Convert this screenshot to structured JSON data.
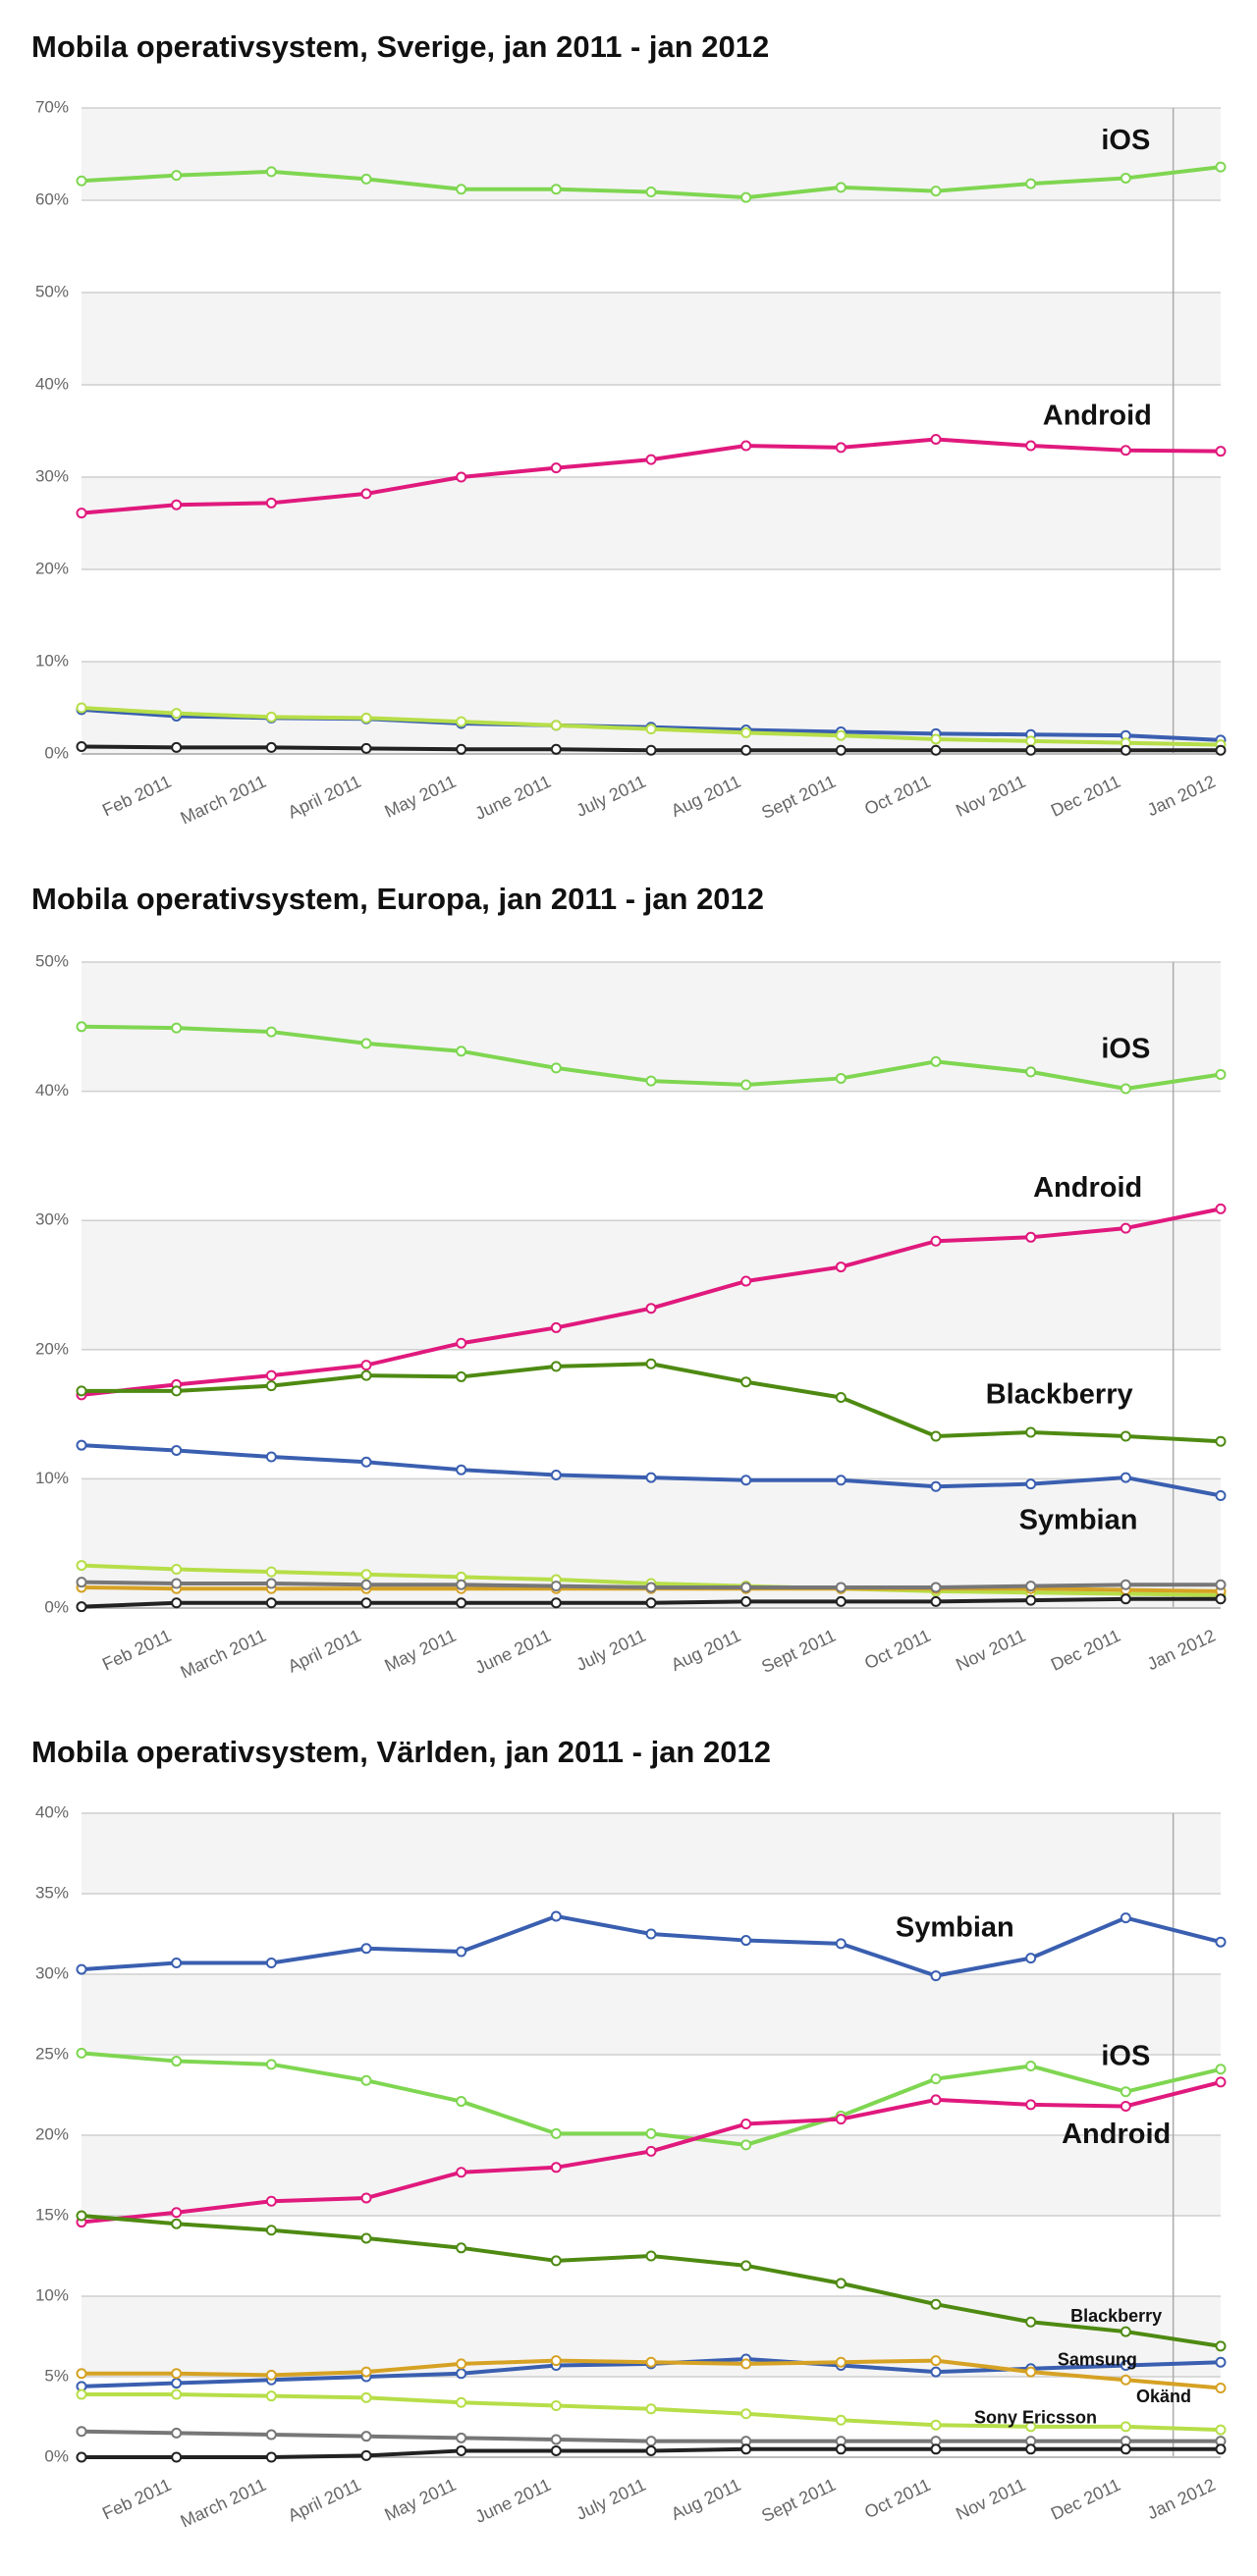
{
  "chart_data": [
    {
      "type": "line",
      "title": "Mobila operativsystem, Sverige, jan 2011 - jan 2012",
      "categories": [
        null,
        "Feb 2011",
        "March 2011",
        "April 2011",
        "May 2011",
        "June 2011",
        "July 2011",
        "Aug 2011",
        "Sept 2011",
        "Oct 2011",
        "Nov 2011",
        "Dec 2011",
        "Jan 2012"
      ],
      "ylim": [
        0,
        70
      ],
      "yticks": [
        {
          "value": 0,
          "label": "0%"
        },
        {
          "value": 10,
          "label": "10%"
        },
        {
          "value": 20,
          "label": "20%"
        },
        {
          "value": 30,
          "label": "30%"
        },
        {
          "value": 40,
          "label": "40%"
        },
        {
          "value": 50,
          "label": "50%"
        },
        {
          "value": 60,
          "label": "60%"
        },
        {
          "value": 70,
          "label": "70%"
        }
      ],
      "grid": true,
      "series": [
        {
          "name": "iOS",
          "color": "#7fd651",
          "values": [
            62.1,
            62.7,
            63.1,
            62.3,
            61.2,
            61.2,
            60.9,
            60.3,
            61.4,
            61.0,
            61.8,
            62.4,
            63.6
          ]
        },
        {
          "name": "Android",
          "color": "#e0197d",
          "values": [
            26.1,
            27.0,
            27.2,
            28.2,
            30.0,
            31.0,
            31.9,
            33.4,
            33.2,
            34.1,
            33.4,
            32.9,
            32.8
          ]
        },
        {
          "color": "#3a5fb0",
          "values": [
            4.8,
            4.1,
            3.9,
            3.8,
            3.3,
            3.1,
            2.9,
            2.6,
            2.4,
            2.2,
            2.1,
            2.0,
            1.5
          ]
        },
        {
          "color": "#b6de48",
          "values": [
            5.0,
            4.4,
            4.0,
            3.9,
            3.5,
            3.1,
            2.7,
            2.3,
            2.0,
            1.6,
            1.4,
            1.2,
            1.0
          ]
        },
        {
          "color": "#222222",
          "values": [
            0.8,
            0.7,
            0.7,
            0.6,
            0.5,
            0.5,
            0.4,
            0.4,
            0.4,
            0.4,
            0.4,
            0.4,
            0.4
          ]
        }
      ]
    },
    {
      "type": "line",
      "title": "Mobila operativsystem, Europa, jan 2011 - jan 2012",
      "categories": [
        null,
        "Feb 2011",
        "March 2011",
        "April 2011",
        "May 2011",
        "June 2011",
        "July 2011",
        "Aug 2011",
        "Sept 2011",
        "Oct 2011",
        "Nov 2011",
        "Dec 2011",
        "Jan 2012"
      ],
      "ylim": [
        0,
        50
      ],
      "yticks": [
        {
          "value": 0,
          "label": "0%"
        },
        {
          "value": 10,
          "label": "10%"
        },
        {
          "value": 20,
          "label": "20%"
        },
        {
          "value": 30,
          "label": "30%"
        },
        {
          "value": 40,
          "label": "40%"
        },
        {
          "value": 50,
          "label": "50%"
        }
      ],
      "grid": true,
      "series": [
        {
          "name": "iOS",
          "color": "#7fd651",
          "values": [
            45.0,
            44.9,
            44.6,
            43.7,
            43.1,
            41.8,
            40.8,
            40.5,
            41.0,
            42.3,
            41.5,
            40.2,
            41.3
          ]
        },
        {
          "name": "Android",
          "color": "#e0197d",
          "values": [
            16.5,
            17.3,
            18.0,
            18.8,
            20.5,
            21.7,
            23.2,
            25.3,
            26.4,
            28.4,
            28.7,
            29.4,
            30.9
          ]
        },
        {
          "name": "Blackberry",
          "color": "#4e8a12",
          "values": [
            16.8,
            16.8,
            17.2,
            18.0,
            17.9,
            18.7,
            18.9,
            17.5,
            16.3,
            13.3,
            13.6,
            13.3,
            12.9
          ]
        },
        {
          "name": "Symbian",
          "color": "#3a5fb0",
          "values": [
            12.6,
            12.2,
            11.7,
            11.3,
            10.7,
            10.3,
            10.1,
            9.9,
            9.9,
            9.4,
            9.6,
            10.1,
            8.7
          ]
        },
        {
          "color": "#b6de48",
          "values": [
            3.3,
            3.0,
            2.8,
            2.6,
            2.4,
            2.2,
            1.9,
            1.7,
            1.5,
            1.3,
            1.2,
            1.1,
            1.0
          ]
        },
        {
          "color": "#d6a224",
          "values": [
            1.6,
            1.5,
            1.5,
            1.5,
            1.5,
            1.5,
            1.5,
            1.5,
            1.5,
            1.5,
            1.5,
            1.4,
            1.3
          ]
        },
        {
          "color": "#777777",
          "values": [
            2.0,
            1.9,
            1.9,
            1.8,
            1.8,
            1.7,
            1.6,
            1.6,
            1.6,
            1.6,
            1.7,
            1.8,
            1.8
          ]
        },
        {
          "color": "#222222",
          "values": [
            0.1,
            0.4,
            0.4,
            0.4,
            0.4,
            0.4,
            0.4,
            0.5,
            0.5,
            0.5,
            0.6,
            0.7,
            0.7
          ]
        }
      ]
    },
    {
      "type": "line",
      "title": "Mobila operativsystem, Världen, jan 2011 - jan 2012",
      "categories": [
        null,
        "Feb 2011",
        "March 2011",
        "April 2011",
        "May 2011",
        "June 2011",
        "July 2011",
        "Aug 2011",
        "Sept 2011",
        "Oct 2011",
        "Nov 2011",
        "Dec 2011",
        "Jan 2012"
      ],
      "ylim": [
        0,
        40
      ],
      "yticks": [
        {
          "value": 0,
          "label": "0%"
        },
        {
          "value": 5,
          "label": "5%"
        },
        {
          "value": 10,
          "label": "10%"
        },
        {
          "value": 15,
          "label": "15%"
        },
        {
          "value": 20,
          "label": "20%"
        },
        {
          "value": 25,
          "label": "25%"
        },
        {
          "value": 30,
          "label": "30%"
        },
        {
          "value": 35,
          "label": "35%"
        },
        {
          "value": 40,
          "label": "40%"
        }
      ],
      "grid": true,
      "series": [
        {
          "name": "Symbian",
          "color": "#3a5fb0",
          "values": [
            30.3,
            30.7,
            30.7,
            31.6,
            31.4,
            33.6,
            32.5,
            32.1,
            31.9,
            29.9,
            31.0,
            33.5,
            32.0
          ]
        },
        {
          "name": "iOS",
          "color": "#7fd651",
          "values": [
            25.1,
            24.6,
            24.4,
            23.4,
            22.1,
            20.1,
            20.1,
            19.4,
            21.2,
            23.5,
            24.3,
            22.7,
            24.1
          ]
        },
        {
          "name": "Android",
          "color": "#e0197d",
          "values": [
            14.6,
            15.2,
            15.9,
            16.1,
            17.7,
            18.0,
            19.0,
            20.7,
            21.0,
            22.2,
            21.9,
            21.8,
            23.3
          ]
        },
        {
          "name": "Blackberry",
          "color": "#4e8a12",
          "values": [
            15.0,
            14.5,
            14.1,
            13.6,
            13.0,
            12.2,
            12.5,
            11.9,
            10.8,
            9.5,
            8.4,
            7.8,
            6.9
          ]
        },
        {
          "name": "Samsung",
          "color": "#3a5fb0",
          "values": [
            4.4,
            4.6,
            4.8,
            5.0,
            5.2,
            5.7,
            5.8,
            6.1,
            5.7,
            5.3,
            5.5,
            5.7,
            5.9
          ]
        },
        {
          "name": "Okänd",
          "color": "#d6a224",
          "values": [
            5.2,
            5.2,
            5.1,
            5.3,
            5.8,
            6.0,
            5.9,
            5.8,
            5.9,
            6.0,
            5.3,
            4.8,
            4.3
          ]
        },
        {
          "name": "Sony Ericsson",
          "color": "#b6de48",
          "values": [
            3.9,
            3.9,
            3.8,
            3.7,
            3.4,
            3.2,
            3.0,
            2.7,
            2.3,
            2.0,
            1.9,
            1.9,
            1.7
          ]
        },
        {
          "color": "#777777",
          "values": [
            1.6,
            1.5,
            1.4,
            1.3,
            1.2,
            1.1,
            1.0,
            1.0,
            1.0,
            1.0,
            1.0,
            1.0,
            1.0
          ]
        },
        {
          "color": "#222222",
          "values": [
            0,
            0,
            0,
            0.1,
            0.4,
            0.4,
            0.4,
            0.5,
            0.5,
            0.5,
            0.5,
            0.5,
            0.5
          ]
        }
      ]
    }
  ]
}
